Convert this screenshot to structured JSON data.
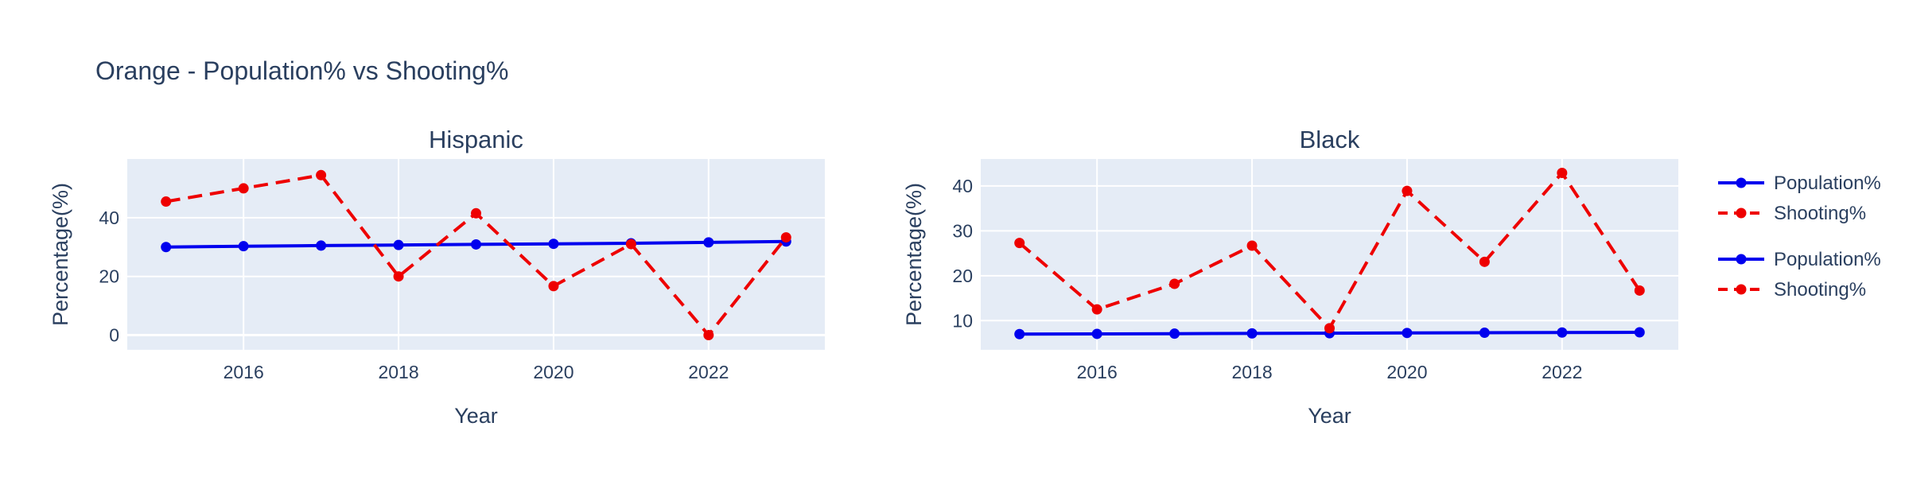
{
  "title": "Orange - Population% vs Shooting%",
  "colors": {
    "plot_bg": "#e5ecf6",
    "grid": "#ffffff",
    "text": "#2a3f5f",
    "population": "#0000ee",
    "shooting": "#ee0000"
  },
  "chart_data": [
    {
      "type": "line",
      "title": "Hispanic",
      "xlabel": "Year",
      "ylabel": "Percentage(%)",
      "xlim": [
        2014.5,
        2023.5
      ],
      "ylim": [
        -5,
        60
      ],
      "xticks": [
        2016,
        2018,
        2020,
        2022
      ],
      "yticks": [
        0,
        20,
        40
      ],
      "x": [
        2015,
        2016,
        2017,
        2018,
        2019,
        2020,
        2021,
        2022,
        2023
      ],
      "series": [
        {
          "name": "Population%",
          "style": "solid",
          "values": [
            30.0,
            30.3,
            30.5,
            30.7,
            30.9,
            31.1,
            31.3,
            31.6,
            31.9
          ]
        },
        {
          "name": "Shooting%",
          "style": "dashed",
          "values": [
            45.5,
            50.0,
            54.5,
            20.0,
            41.5,
            16.7,
            31.0,
            0.0,
            33.3
          ]
        }
      ]
    },
    {
      "type": "line",
      "title": "Black",
      "xlabel": "Year",
      "ylabel": "Percentage(%)",
      "xlim": [
        2014.5,
        2023.5
      ],
      "ylim": [
        3.5,
        46
      ],
      "xticks": [
        2016,
        2018,
        2020,
        2022
      ],
      "yticks": [
        10,
        20,
        30,
        40
      ],
      "x": [
        2015,
        2016,
        2017,
        2018,
        2019,
        2020,
        2021,
        2022,
        2023
      ],
      "series": [
        {
          "name": "Population%",
          "style": "solid",
          "values": [
            7.0,
            7.05,
            7.1,
            7.15,
            7.2,
            7.25,
            7.3,
            7.35,
            7.4
          ]
        },
        {
          "name": "Shooting%",
          "style": "dashed",
          "values": [
            27.3,
            12.5,
            18.2,
            26.7,
            8.3,
            38.9,
            23.1,
            42.9,
            16.7
          ]
        }
      ]
    }
  ],
  "legend": [
    {
      "label": "Population%",
      "series": "Population%"
    },
    {
      "label": "Shooting%",
      "series": "Shooting%"
    },
    {
      "label": "Population%",
      "series": "Population%"
    },
    {
      "label": "Shooting%",
      "series": "Shooting%"
    }
  ]
}
